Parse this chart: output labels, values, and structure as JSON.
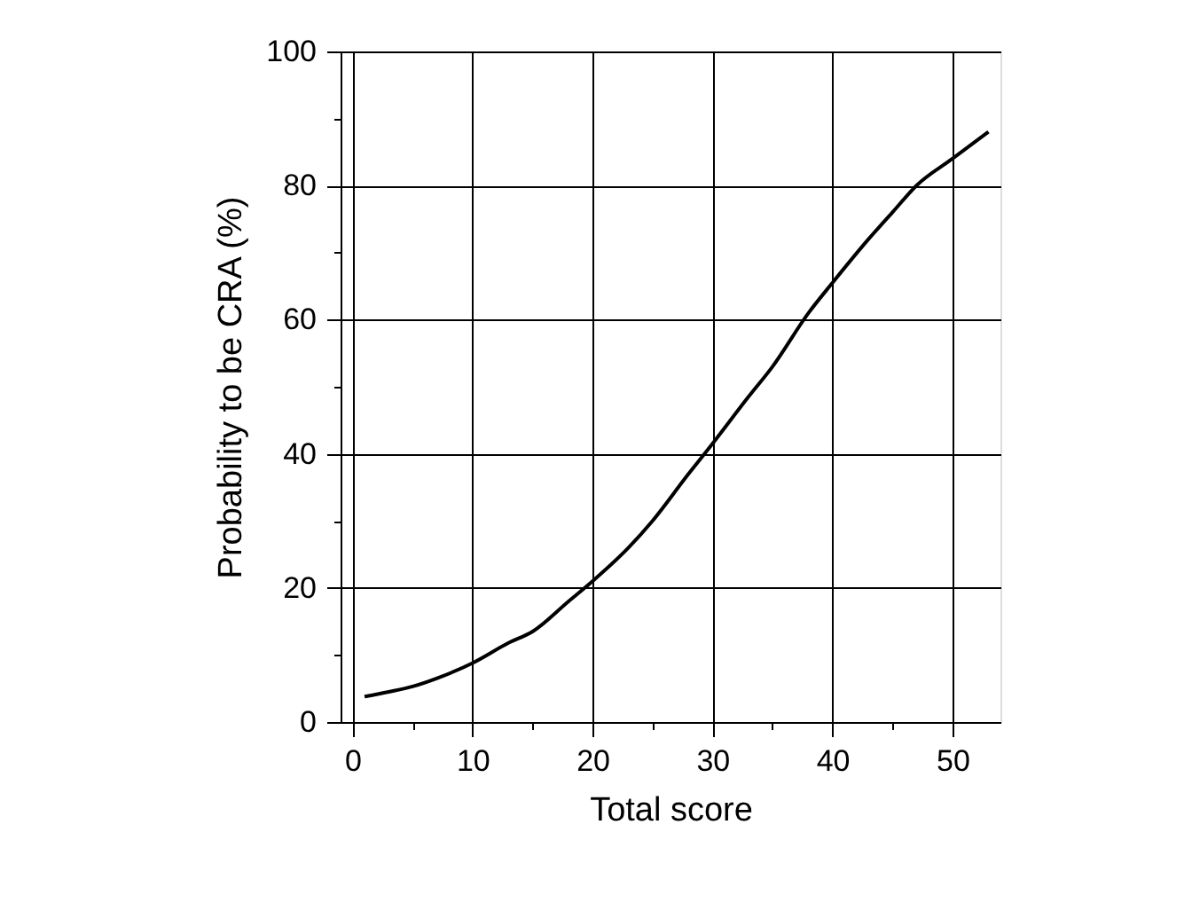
{
  "chart_data": {
    "type": "line",
    "xlabel": "Total score",
    "ylabel": "Probability to be CRA (%)",
    "x": [
      1,
      3,
      5,
      7,
      10,
      13,
      15,
      18,
      20,
      23,
      25,
      28,
      30,
      33,
      35,
      38,
      40,
      43,
      45,
      47,
      50,
      53
    ],
    "series": [
      {
        "color": "#000000",
        "values": [
          3.8,
          4.5,
          5.3,
          6.5,
          8.8,
          11.8,
          13.5,
          18,
          21,
          26,
          30,
          37,
          41.5,
          48.5,
          53,
          61,
          65.5,
          72,
          76,
          80,
          84,
          88
        ]
      }
    ],
    "xlim": [
      -1,
      54
    ],
    "ylim": [
      0,
      100
    ],
    "xticks": [
      0,
      {
        "value": 5,
        "label": null
      },
      10,
      {
        "value": 15,
        "label": null
      },
      20,
      {
        "value": 25,
        "label": null
      },
      30,
      {
        "value": 35,
        "label": null
      },
      40,
      {
        "value": 45,
        "label": null
      },
      50
    ],
    "yticks": [
      0,
      {
        "value": 10,
        "label": null
      },
      20,
      {
        "value": 30,
        "label": null
      },
      40,
      {
        "value": 50,
        "label": null
      },
      60,
      {
        "value": 70,
        "label": null
      },
      80,
      {
        "value": 90,
        "label": null
      },
      100
    ],
    "grid": true,
    "marker": "none",
    "line_style": "solid"
  }
}
